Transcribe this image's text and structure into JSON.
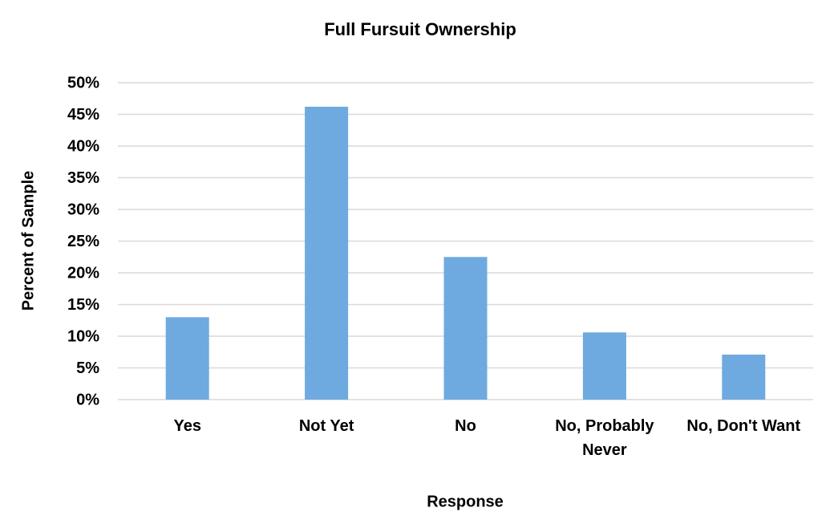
{
  "chart_data": {
    "type": "bar",
    "title": "Full Fursuit Ownership",
    "x_label": "Response",
    "y_label": "Percent of Sample",
    "categories": [
      "Yes",
      "Not Yet",
      "No",
      "No, Probably Never",
      "No, Don't Want"
    ],
    "values": [
      13,
      46.2,
      22.5,
      10.6,
      7.1
    ],
    "color": "#6eaadf",
    "ylim": [
      0,
      50
    ],
    "yticks": [
      {
        "value": 0,
        "label": "0%"
      },
      {
        "value": 5,
        "label": "5%"
      },
      {
        "value": 10,
        "label": "10%"
      },
      {
        "value": 15,
        "label": "15%"
      },
      {
        "value": 20,
        "label": "20%"
      },
      {
        "value": 25,
        "label": "25%"
      },
      {
        "value": 30,
        "label": "30%"
      },
      {
        "value": 35,
        "label": "35%"
      },
      {
        "value": 40,
        "label": "40%"
      },
      {
        "value": 45,
        "label": "45%"
      },
      {
        "value": 50,
        "label": "50%"
      }
    ],
    "grid": true
  }
}
